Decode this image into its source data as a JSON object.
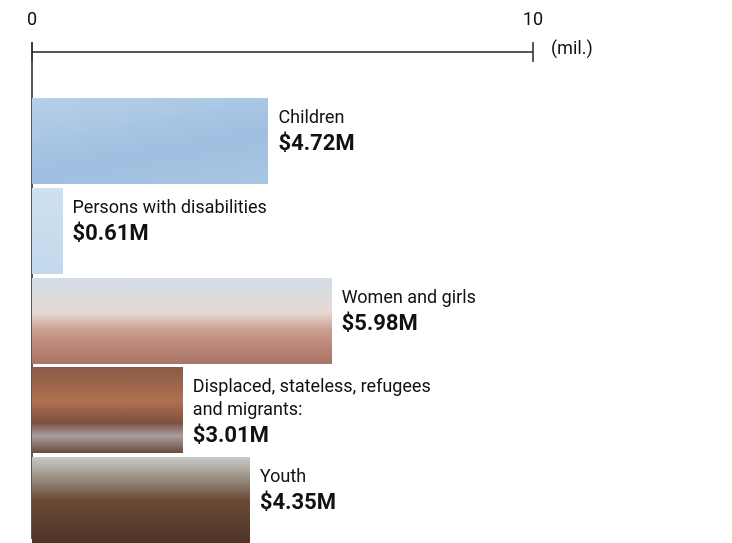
{
  "chart_data": {
    "type": "bar",
    "orientation": "horizontal",
    "categories": [
      "Children",
      "Persons with disabilities",
      "Women and girls",
      "Displaced, stateless, refugees and migrants:",
      "Youth"
    ],
    "values": [
      4.72,
      0.61,
      5.98,
      3.01,
      4.35
    ],
    "value_labels": [
      "$4.72M",
      "$0.61M",
      "$5.98M",
      "$3.01M",
      "$4.35M"
    ],
    "xlim": [
      0,
      10
    ],
    "xticks": [
      0,
      10
    ],
    "xlabel": "(mil.)"
  }
}
